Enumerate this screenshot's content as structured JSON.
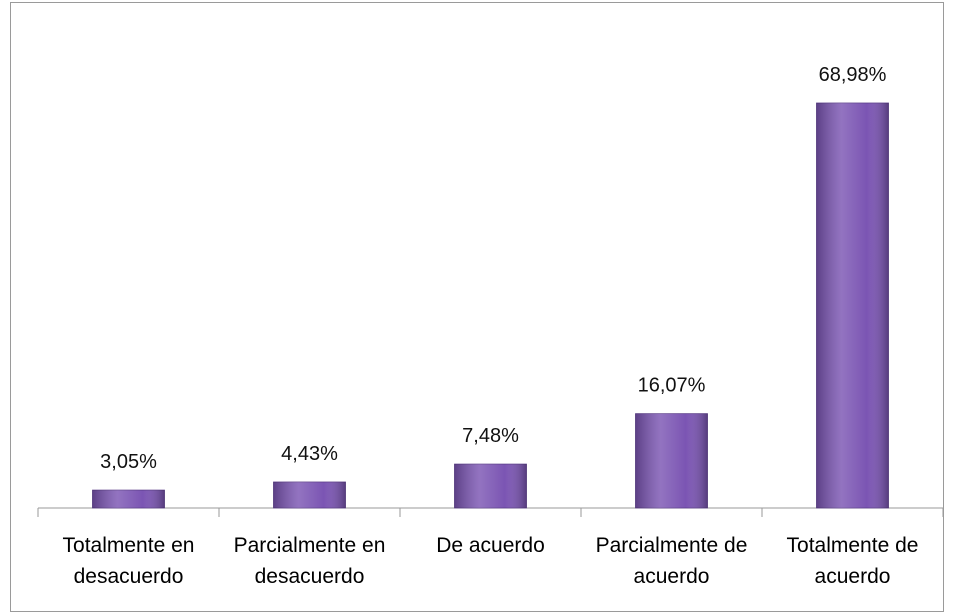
{
  "chart_data": {
    "type": "bar",
    "categories": [
      "Totalmente en desacuerdo",
      "Parcialmente en desacuerdo",
      "De acuerdo",
      "Parcialmente de acuerdo",
      "Totalmente de acuerdo"
    ],
    "values": [
      3.05,
      4.43,
      7.48,
      16.07,
      68.98
    ],
    "value_labels": [
      "3,05%",
      "4,43%",
      "7,48%",
      "16,07%",
      "68,98%"
    ],
    "color": "#7b55b3"
  }
}
